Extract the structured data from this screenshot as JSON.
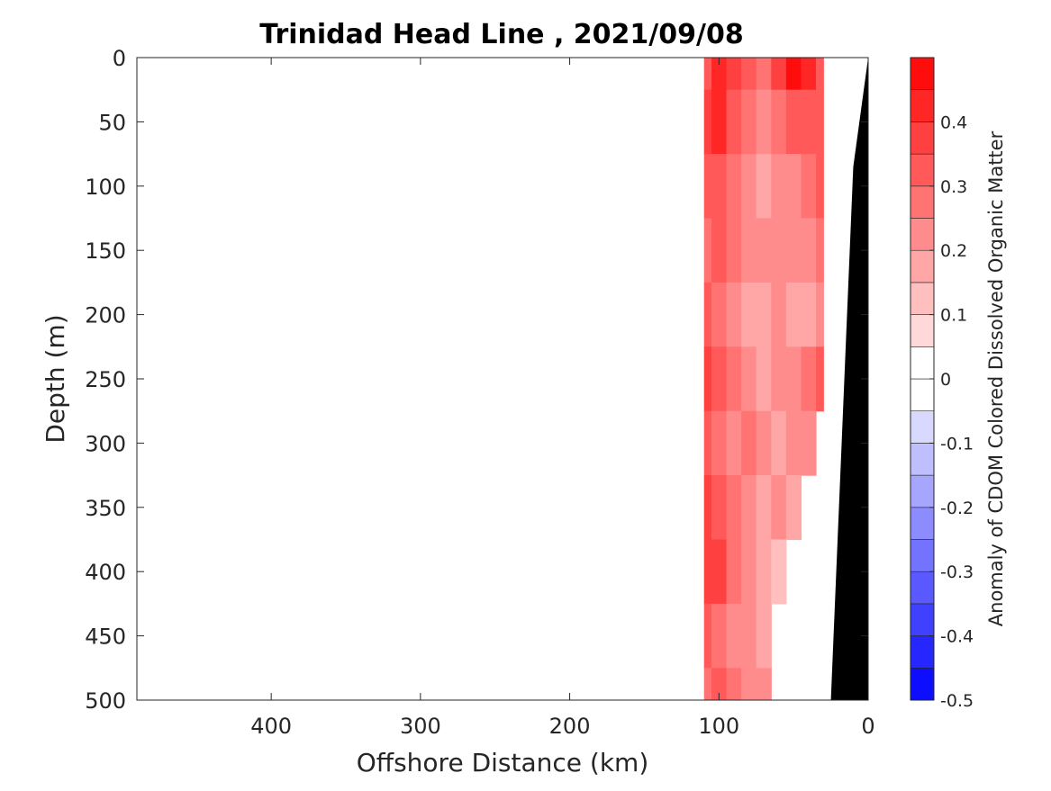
{
  "chart_data": {
    "type": "heatmap",
    "title": "Trinidad Head Line , 2021/09/08",
    "xlabel": "Offshore Distance (km)",
    "ylabel": "Depth (m)",
    "colorbar_label": "Anomaly of CDOM Colored Dissolved Organic Matter",
    "xlim": [
      490,
      0
    ],
    "ylim": [
      500,
      0
    ],
    "x_reversed": true,
    "y_reversed": true,
    "x_ticks": [
      400,
      300,
      200,
      100,
      0
    ],
    "x_tick_labels": [
      "400",
      "300",
      "200",
      "100",
      "0"
    ],
    "y_ticks": [
      0,
      50,
      100,
      150,
      200,
      250,
      300,
      350,
      400,
      450,
      500
    ],
    "y_tick_labels": [
      "0",
      "50",
      "100",
      "150",
      "200",
      "250",
      "300",
      "350",
      "400",
      "450",
      "500"
    ],
    "color_levels": [
      -0.5,
      -0.45,
      -0.4,
      -0.35,
      -0.3,
      -0.25,
      -0.2,
      -0.15,
      -0.1,
      -0.05,
      0,
      0.05,
      0.1,
      0.15,
      0.2,
      0.25,
      0.3,
      0.35,
      0.4,
      0.45,
      0.5
    ],
    "colorbar_ticks": [
      0.4,
      0.3,
      0.2,
      0.1,
      0,
      -0.1,
      -0.2,
      -0.3,
      -0.4,
      -0.5
    ],
    "colorbar_tick_labels": [
      "0.4",
      "0.3",
      "0.2",
      "0.1",
      "0",
      "-0.1",
      "-0.2",
      "-0.3",
      "-0.4",
      "-0.5"
    ],
    "colormap": "blue-white-red",
    "colors": {
      "negative_max": "#0000ff",
      "zero": "#ffffff",
      "positive_max": "#ff0000",
      "seafloor": "#000000"
    },
    "data_extent_km": [
      110,
      30
    ],
    "field": {
      "x": [
        110,
        100,
        90,
        80,
        70,
        60,
        50,
        40,
        30
      ],
      "depth": [
        0,
        50,
        100,
        150,
        200,
        250,
        300,
        350,
        400,
        450,
        500
      ],
      "values": [
        [
          0.3,
          0.4,
          0.35,
          0.3,
          0.25,
          0.35,
          0.45,
          0.4,
          0.3
        ],
        [
          0.35,
          0.4,
          0.3,
          0.25,
          0.2,
          0.25,
          0.3,
          0.3,
          0.3
        ],
        [
          0.3,
          0.3,
          0.25,
          0.2,
          0.15,
          0.2,
          0.2,
          0.25,
          0.3
        ],
        [
          0.25,
          0.3,
          0.25,
          0.2,
          0.2,
          0.2,
          0.2,
          0.2,
          0.25
        ],
        [
          0.3,
          0.25,
          0.2,
          0.15,
          0.15,
          0.2,
          0.15,
          0.15,
          0.2
        ],
        [
          0.35,
          0.3,
          0.25,
          0.2,
          0.15,
          0.2,
          0.2,
          0.25,
          0.3
        ],
        [
          0.3,
          0.25,
          0.2,
          0.25,
          0.2,
          0.15,
          0.2,
          0.2,
          null
        ],
        [
          0.35,
          0.3,
          0.25,
          0.2,
          0.15,
          0.2,
          0.15,
          null,
          null
        ],
        [
          0.35,
          0.35,
          0.25,
          0.2,
          0.15,
          0.1,
          null,
          null,
          null
        ],
        [
          0.3,
          0.25,
          0.2,
          0.2,
          0.15,
          null,
          null,
          null,
          null
        ],
        [
          0.25,
          0.3,
          0.25,
          0.2,
          0.2,
          null,
          null,
          null,
          null
        ]
      ]
    },
    "seafloor": {
      "x": [
        0,
        10,
        25,
        0
      ],
      "depth": [
        0,
        85,
        500,
        500
      ]
    }
  }
}
